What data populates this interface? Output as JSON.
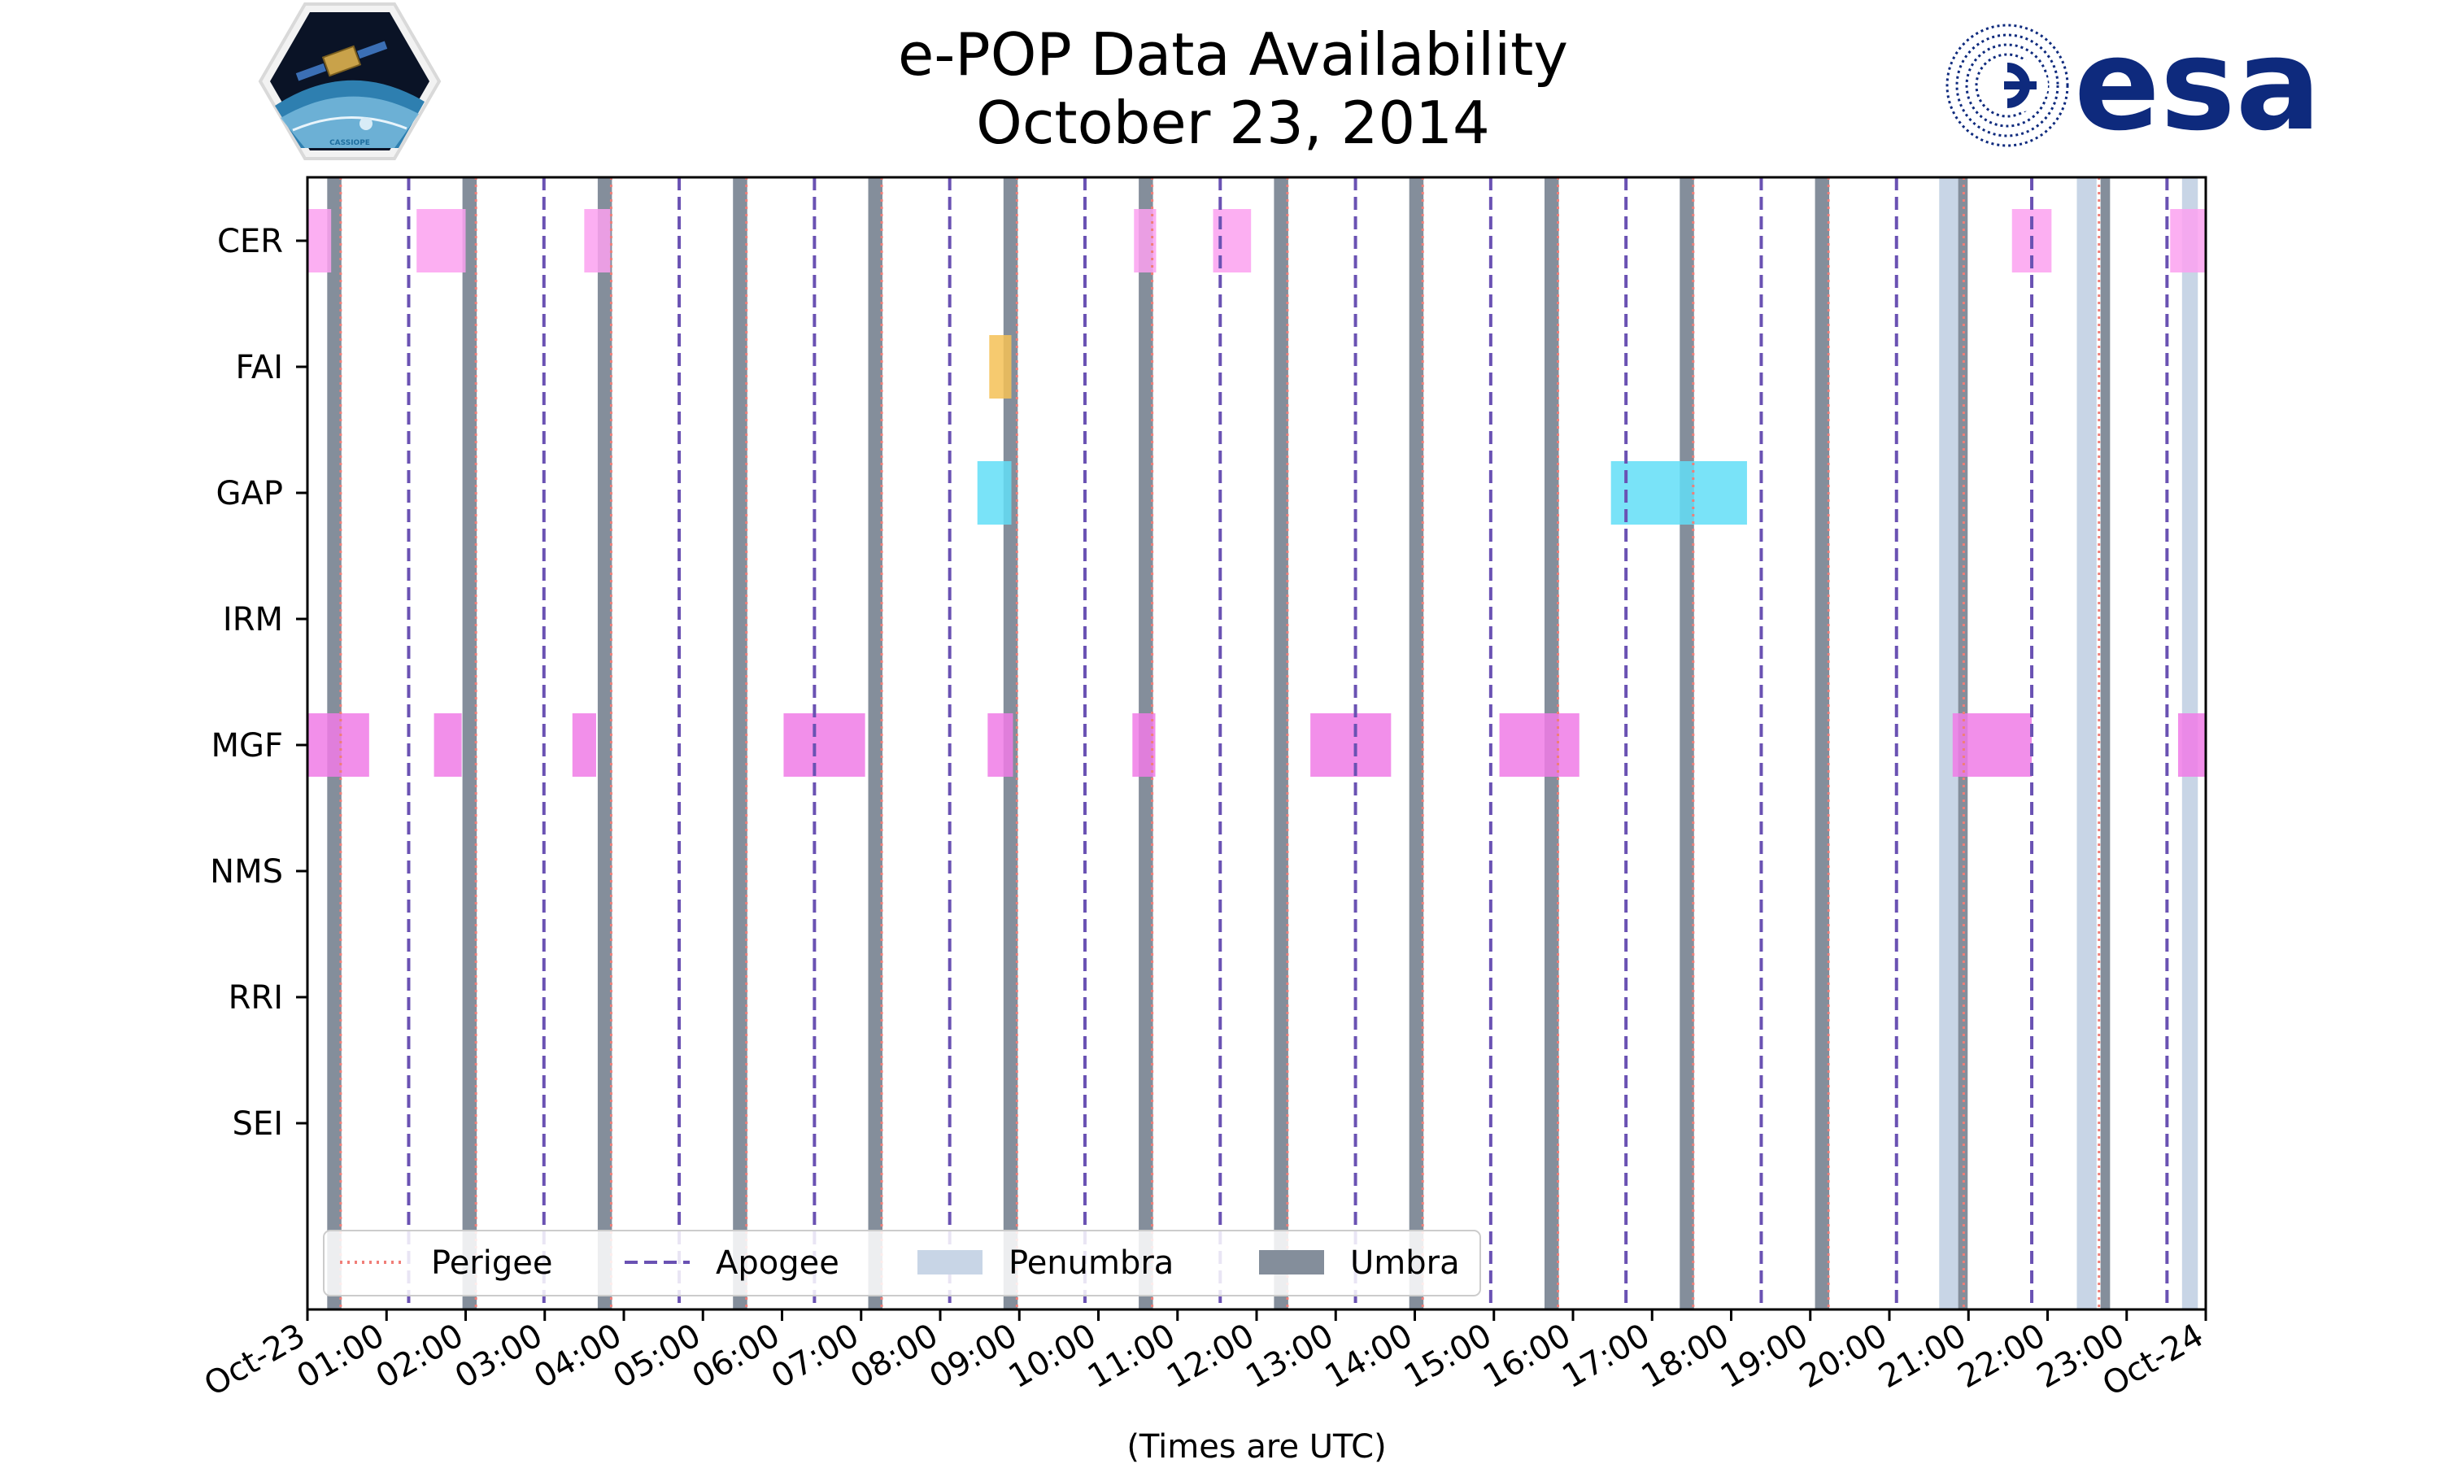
{
  "chart_data": {
    "type": "timeline",
    "title": "e-POP Data Availability",
    "subtitle": "October 23, 2014",
    "xlabel": "(Times are UTC)",
    "x_unit": "hours since Oct-23 00:00 UTC",
    "xlim": [
      0,
      24
    ],
    "x_tick_labels": [
      "Oct-23",
      "01:00",
      "02:00",
      "03:00",
      "04:00",
      "05:00",
      "06:00",
      "07:00",
      "08:00",
      "09:00",
      "10:00",
      "11:00",
      "12:00",
      "13:00",
      "14:00",
      "15:00",
      "16:00",
      "17:00",
      "18:00",
      "19:00",
      "20:00",
      "21:00",
      "22:00",
      "23:00",
      "Oct-24"
    ],
    "categories": [
      "CER",
      "FAI",
      "GAP",
      "IRM",
      "MGF",
      "NMS",
      "RRI",
      "SEI"
    ],
    "instrument_colors": {
      "CER": "#fca1f0",
      "FAI": "#f5c156",
      "GAP": "#62def7",
      "MGF": "#f07be6"
    },
    "instrument_intervals": {
      "CER": [
        [
          0.0,
          0.3
        ],
        [
          1.38,
          2.0
        ],
        [
          3.5,
          3.83
        ],
        [
          10.45,
          10.73
        ],
        [
          11.45,
          11.93
        ],
        [
          21.55,
          22.05
        ],
        [
          23.55,
          24.0
        ]
      ],
      "FAI": [
        [
          8.62,
          8.9
        ]
      ],
      "GAP": [
        [
          8.47,
          8.9
        ],
        [
          16.48,
          18.2
        ]
      ],
      "IRM": [],
      "MGF": [
        [
          0.0,
          0.78
        ],
        [
          1.6,
          1.95
        ],
        [
          3.35,
          3.65
        ],
        [
          6.02,
          7.05
        ],
        [
          8.6,
          8.92
        ],
        [
          10.43,
          10.72
        ],
        [
          12.68,
          13.7
        ],
        [
          15.07,
          16.08
        ],
        [
          20.8,
          21.8
        ],
        [
          23.65,
          24.0
        ]
      ],
      "NMS": [],
      "RRI": [],
      "SEI": []
    },
    "umbra": [
      [
        0.25,
        0.43
      ],
      [
        1.96,
        2.14
      ],
      [
        3.67,
        3.85
      ],
      [
        5.38,
        5.56
      ],
      [
        7.09,
        7.27
      ],
      [
        8.8,
        8.98
      ],
      [
        10.51,
        10.69
      ],
      [
        12.22,
        12.4
      ],
      [
        13.93,
        14.11
      ],
      [
        15.64,
        15.82
      ],
      [
        17.35,
        17.53
      ],
      [
        19.06,
        19.24
      ],
      [
        20.87,
        20.99
      ],
      [
        22.67,
        22.79
      ]
    ],
    "penumbra": [
      [
        20.63,
        20.87
      ],
      [
        22.37,
        22.62
      ],
      [
        23.7,
        23.9
      ]
    ],
    "perigee": [
      0.42,
      2.13,
      3.84,
      5.55,
      7.26,
      8.97,
      10.68,
      12.39,
      14.1,
      15.81,
      17.52,
      19.23,
      20.94,
      22.65
    ],
    "apogee": [
      1.28,
      2.99,
      4.7,
      6.41,
      8.12,
      9.83,
      11.54,
      13.25,
      14.96,
      16.67,
      18.38,
      20.09,
      21.8,
      23.51
    ],
    "legend": {
      "position": "lower-left",
      "entries": [
        {
          "label": "Perigee",
          "style": "dotted",
          "color": "#f07e78"
        },
        {
          "label": "Apogee",
          "style": "dashed",
          "color": "#6a52b3"
        },
        {
          "label": "Penumbra",
          "style": "patch",
          "color": "#c8d5e6"
        },
        {
          "label": "Umbra",
          "style": "patch",
          "color": "#848e9b"
        }
      ]
    },
    "colors": {
      "umbra": "#848e9b",
      "penumbra": "#c8d5e6",
      "perigee": "#f07e78",
      "apogee": "#6a52b3"
    }
  },
  "logos": {
    "left": {
      "name": "CASSIOPE",
      "text": "CASSIOPE"
    },
    "right": {
      "name": "ESA",
      "text": "esa",
      "color": "#0e2a7d"
    }
  }
}
